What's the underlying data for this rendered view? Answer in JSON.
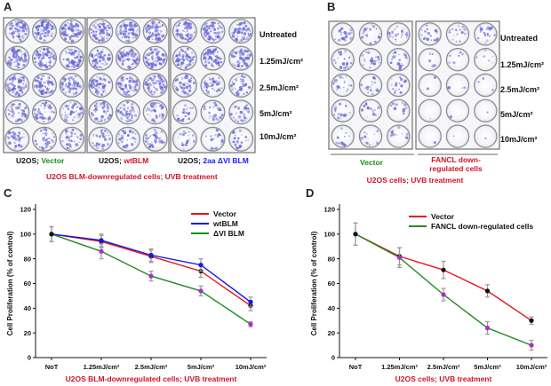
{
  "panels": {
    "A": {
      "letter": "A",
      "dose_labels": [
        "Untreated",
        "1.25mJ/cm²",
        "2.5mJ/cm²",
        "5mJ/cm²",
        "10mJ/cm²"
      ],
      "plates": [
        {
          "prefix": "U2OS; ",
          "name": "Vector",
          "color": "#1a8c1a"
        },
        {
          "prefix": "U2OS; ",
          "name": "wtBLM",
          "color": "#d0142a"
        },
        {
          "prefix": "U2OS; ",
          "name": "2aa  ΔVI BLM",
          "color": "#1a1aff"
        }
      ],
      "caption": "U2OS BLM-downregulated  cells; UVB treatment"
    },
    "B": {
      "letter": "B",
      "dose_labels": [
        "Untreated",
        "1.25mJ/cm²",
        "2.5mJ/cm²",
        "5mJ/cm²",
        "10mJ/cm²"
      ],
      "plates": [
        {
          "name": "Vector",
          "color": "#1a8c1a"
        },
        {
          "name_line1": "FANCL  down-",
          "name_line2": "regulated cells",
          "color": "#d0142a"
        }
      ],
      "caption": "U2OS cells; UVB treatment"
    },
    "C": {
      "letter": "C"
    },
    "D": {
      "letter": "D"
    }
  },
  "colors": {
    "stain": "#6b6bd6",
    "red": "#e8141e",
    "blue": "#1414e6",
    "green": "#1e8c1e"
  },
  "chart_data": [
    {
      "id": "C",
      "type": "line",
      "title": "",
      "xlabel": "U2OS BLM-downregulated  cells; UVB treatment",
      "ylabel": "Cell Proliferation  (% of control)",
      "categories": [
        "NoT",
        "1.25mJ/cm²",
        "2.5mJ/cm²",
        "5mJ/cm²",
        "10mJ/cm²"
      ],
      "ylim": [
        0,
        120
      ],
      "yticks": [
        0,
        20,
        40,
        60,
        80,
        100,
        120
      ],
      "legend": "top-right",
      "series": [
        {
          "name": "Vector",
          "color": "#e8141e",
          "values": [
            100,
            94,
            82,
            70,
            42
          ],
          "errors": [
            6,
            5,
            5,
            5,
            4
          ]
        },
        {
          "name": "wtBLM",
          "color": "#1414e6",
          "values": [
            100,
            95,
            83,
            75,
            45
          ],
          "errors": [
            6,
            5,
            5,
            5,
            4
          ]
        },
        {
          "name": "ΔVI BLM",
          "color": "#1e8c1e",
          "values": [
            100,
            86,
            66,
            54,
            27
          ],
          "errors": [
            6,
            6,
            4,
            4,
            2
          ]
        }
      ]
    },
    {
      "id": "D",
      "type": "line",
      "title": "",
      "xlabel": "U2OS cells; UVB treatment",
      "ylabel": "Cell Proliferation  (% of control)",
      "categories": [
        "NoT",
        "1.25mJ/cm²",
        "2.5mJ/cm²",
        "5mJ/cm²",
        "10mJ/cm²"
      ],
      "ylim": [
        0,
        120
      ],
      "yticks": [
        0,
        20,
        40,
        60,
        80,
        100,
        120
      ],
      "legend": "top-right",
      "series": [
        {
          "name": "Vector",
          "color": "#e8141e",
          "values": [
            100,
            82,
            71,
            54,
            30
          ],
          "errors": [
            9,
            7,
            7,
            5,
            3
          ]
        },
        {
          "name": "FANCL down-regulated  cells",
          "color": "#1e8c1e",
          "values": [
            100,
            81,
            51,
            24,
            10
          ],
          "errors": [
            9,
            8,
            5,
            5,
            4
          ]
        }
      ]
    }
  ]
}
